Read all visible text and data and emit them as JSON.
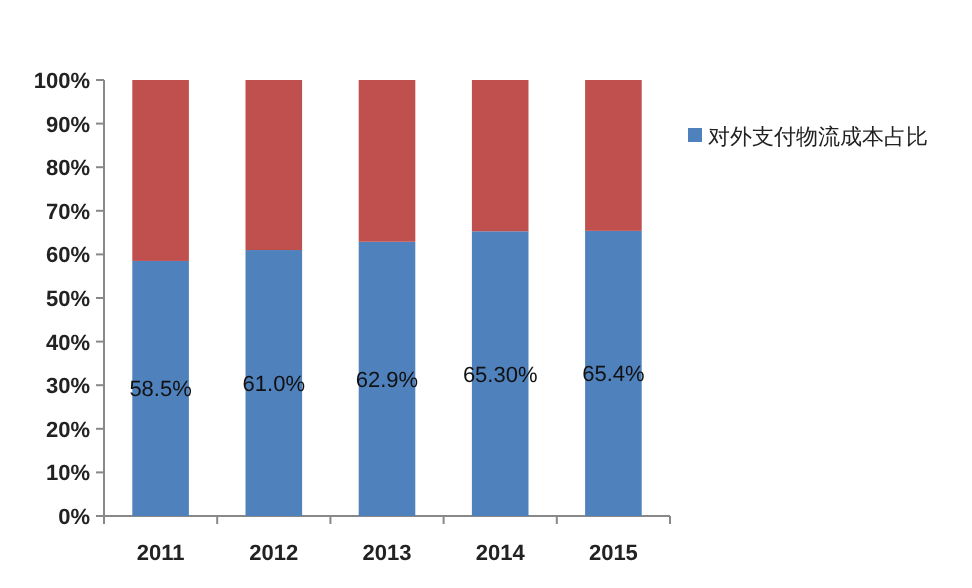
{
  "chart_data": {
    "type": "bar",
    "stacked": true,
    "categories": [
      "2011",
      "2012",
      "2013",
      "2014",
      "2015"
    ],
    "series": [
      {
        "name": "对外支付物流成本占比",
        "color": "#4f81bd",
        "values": [
          58.5,
          61.0,
          62.9,
          65.3,
          65.4
        ],
        "value_labels": [
          "58.5%",
          "61.0%",
          "62.9%",
          "65.30%",
          "65.4%"
        ]
      },
      {
        "color": "#c0504d",
        "values": [
          41.5,
          39.0,
          37.1,
          34.7,
          34.6
        ]
      }
    ],
    "ylim": [
      0,
      100
    ],
    "yticks": [
      {
        "value": 0,
        "label": "0%"
      },
      {
        "value": 10,
        "label": "10%"
      },
      {
        "value": 20,
        "label": "20%"
      },
      {
        "value": 30,
        "label": "30%"
      },
      {
        "value": 40,
        "label": "40%"
      },
      {
        "value": 50,
        "label": "50%"
      },
      {
        "value": 60,
        "label": "60%"
      },
      {
        "value": 70,
        "label": "70%"
      },
      {
        "value": 80,
        "label": "80%"
      },
      {
        "value": 90,
        "label": "90%"
      },
      {
        "value": 100,
        "label": "100%"
      }
    ],
    "legend": "right"
  }
}
